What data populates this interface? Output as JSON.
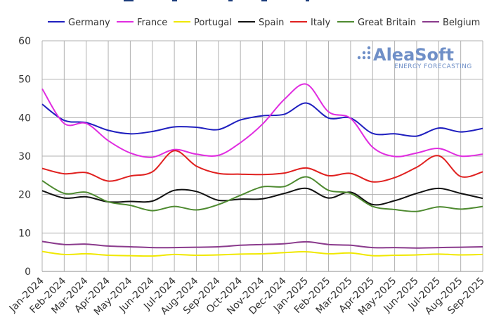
{
  "chart_data": {
    "type": "line",
    "title": "",
    "xlabel": "",
    "ylabel": "",
    "ylim": [
      0,
      60
    ],
    "yticks": [
      0,
      10,
      20,
      30,
      40,
      50,
      60
    ],
    "grid": true,
    "legend_position": "top",
    "categories": [
      "Jan-2024",
      "Feb-2024",
      "Mar-2024",
      "Apr-2024",
      "May-2024",
      "Jun-2024",
      "Jul-2024",
      "Aug-2024",
      "Sep-2024",
      "Oct-2024",
      "Nov-2024",
      "Dec-2024",
      "Jan-2025",
      "Feb-2025",
      "Mar-2025",
      "Apr-2025",
      "May-2025",
      "Jun-2025",
      "Jul-2025",
      "Aug-2025",
      "Sep-2025"
    ],
    "series": [
      {
        "name": "Germany",
        "color": "#1f1fbf",
        "values": [
          43.5,
          39.3,
          38.7,
          36.7,
          35.8,
          36.4,
          37.6,
          37.5,
          36.9,
          39.4,
          40.5,
          40.9,
          43.8,
          39.9,
          39.9,
          35.9,
          35.8,
          35.2,
          37.3,
          36.3,
          37.2
        ]
      },
      {
        "name": "France",
        "color": "#e02de0",
        "values": [
          47.5,
          38.5,
          38.5,
          34.0,
          30.8,
          29.7,
          31.7,
          30.5,
          30.2,
          33.5,
          38.3,
          44.8,
          48.7,
          41.5,
          39.8,
          32.3,
          29.9,
          30.8,
          32.0,
          30.0,
          30.5
        ]
      },
      {
        "name": "Portugal",
        "color": "#f0e800",
        "values": [
          5.2,
          4.4,
          4.6,
          4.2,
          4.1,
          4.0,
          4.4,
          4.2,
          4.3,
          4.5,
          4.6,
          4.9,
          5.1,
          4.6,
          4.8,
          4.1,
          4.2,
          4.3,
          4.5,
          4.3,
          4.4
        ]
      },
      {
        "name": "Spain",
        "color": "#111111",
        "values": [
          21.0,
          19.1,
          19.4,
          18.1,
          18.2,
          18.3,
          21.1,
          20.8,
          18.5,
          18.8,
          18.9,
          20.3,
          21.6,
          19.1,
          20.6,
          17.4,
          18.4,
          20.3,
          21.6,
          20.3,
          19.0
        ]
      },
      {
        "name": "Italy",
        "color": "#e0201f",
        "values": [
          26.8,
          25.4,
          25.7,
          23.5,
          24.8,
          25.9,
          31.4,
          27.4,
          25.5,
          25.3,
          25.2,
          25.6,
          26.9,
          24.9,
          25.5,
          23.3,
          24.4,
          27.1,
          30.1,
          24.7,
          25.9
        ]
      },
      {
        "name": "Great Britain",
        "color": "#4e8a30",
        "values": [
          23.6,
          20.3,
          20.6,
          18.1,
          17.2,
          15.8,
          16.9,
          16.0,
          17.4,
          19.8,
          22.0,
          22.1,
          24.6,
          21.1,
          20.3,
          16.9,
          16.1,
          15.6,
          16.8,
          16.2,
          16.9
        ]
      },
      {
        "name": "Belgium",
        "color": "#8a3a8c",
        "values": [
          7.8,
          7.0,
          7.1,
          6.6,
          6.4,
          6.2,
          6.2,
          6.3,
          6.4,
          6.8,
          7.0,
          7.2,
          7.7,
          7.0,
          6.8,
          6.2,
          6.2,
          6.1,
          6.2,
          6.3,
          6.4
        ]
      }
    ]
  },
  "logo": {
    "name": "AleaSoft",
    "tagline": "ENERGY FORECASTING"
  }
}
